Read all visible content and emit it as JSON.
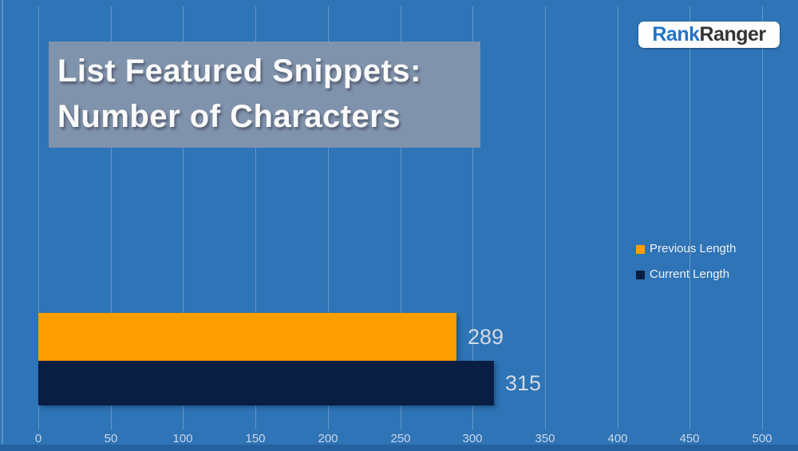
{
  "title": {
    "line1": "List Featured Snippets:",
    "line2": "Number of Characters"
  },
  "logo": {
    "brand_part1": "Rank",
    "brand_part2": "Ranger"
  },
  "chart_data": {
    "type": "bar",
    "orientation": "horizontal",
    "title": "List Featured Snippets: Number of Characters",
    "categories": [
      "List Featured Snippets"
    ],
    "series": [
      {
        "name": "Previous Length",
        "values": [
          289
        ],
        "color": "#FF9E01"
      },
      {
        "name": "Current Length",
        "values": [
          315
        ],
        "color": "#0A1E44"
      }
    ],
    "data_labels": [
      "289",
      "315"
    ],
    "xlabel": "",
    "ylabel": "",
    "xlim": [
      0,
      500
    ],
    "xticks": [
      0,
      50,
      100,
      150,
      200,
      250,
      300,
      350,
      400,
      450,
      500
    ],
    "grid": true,
    "legend": [
      "Previous Length",
      "Current Length"
    ],
    "legend_position": "middle-right"
  },
  "colors": {
    "background": "#2E74B6",
    "gridline": "rgba(255,255,255,0.26)",
    "title_box": "#8093AC",
    "bar_previous": "#FF9E01",
    "bar_current": "#0A1E44",
    "axis_text": "#C9D6E8",
    "data_label_text": "#D3DAE3",
    "legend_text": "#F2F2F2",
    "bottom_strip": "#25619F",
    "logo_blue": "#2273C8",
    "logo_dark": "#333333"
  }
}
